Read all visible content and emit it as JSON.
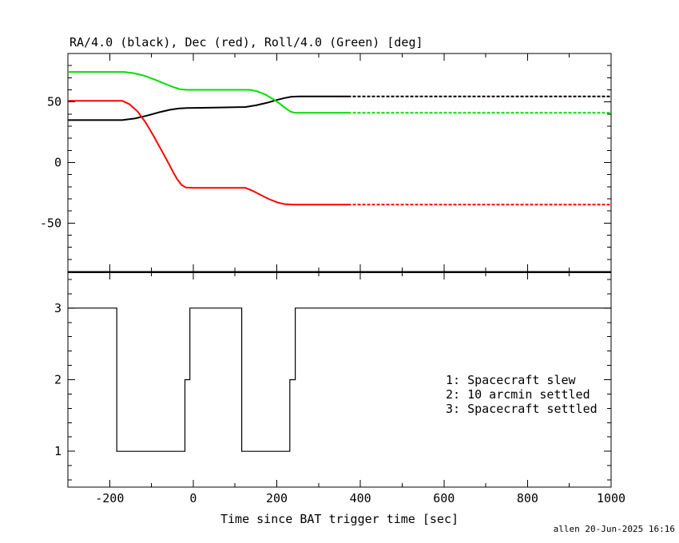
{
  "title": "RA/4.0 (black), Dec (red), Roll/4.0 (Green) [deg]",
  "footer": "allen 20-Jun-2025 16:16",
  "colors": {
    "black": "#000000",
    "red": "#ff0000",
    "green": "#00dd00",
    "frame": "#000000",
    "footer_text": "#000080",
    "background": "#ffffff"
  },
  "x_axis": {
    "label": "Time since BAT trigger time [sec]",
    "min": -300,
    "max": 1000,
    "major_step": 200,
    "minor_step": 100,
    "tick_values": [
      -200,
      0,
      200,
      400,
      600,
      800,
      1000
    ],
    "tick_labels": [
      "-200",
      "0",
      "200",
      "400",
      "600",
      "800",
      "1000"
    ]
  },
  "chart_data": [
    {
      "type": "line",
      "panel": "attitude",
      "title": "RA/4.0 (black), Dec (red), Roll/4.0 (Green) [deg]",
      "xlabel": "Time since BAT trigger time [sec]",
      "ylabel": "",
      "xlim": [
        -300,
        1000
      ],
      "ylim": [
        -90,
        90
      ],
      "grid": false,
      "y_major_step": 50,
      "y_minor_step": 10,
      "ytick_values": [
        50,
        0,
        -50
      ],
      "ytick_labels": [
        "50",
        "0",
        "-50"
      ],
      "series": [
        {
          "name": "RA/4.0",
          "color_key": "black",
          "dash_from": 370,
          "points": [
            [
              -300,
              35
            ],
            [
              -170,
              35
            ],
            [
              -140,
              36.3
            ],
            [
              -110,
              38.8
            ],
            [
              -80,
              41.6
            ],
            [
              -55,
              43.6
            ],
            [
              -35,
              44.6
            ],
            [
              -15,
              45
            ],
            [
              50,
              45.3
            ],
            [
              125,
              45.8
            ],
            [
              150,
              47.2
            ],
            [
              175,
              49.2
            ],
            [
              200,
              51.6
            ],
            [
              218,
              53.2
            ],
            [
              235,
              54.3
            ],
            [
              255,
              54.5
            ],
            [
              370,
              54.5
            ],
            [
              1000,
              54.5
            ]
          ]
        },
        {
          "name": "Dec",
          "color_key": "red",
          "dash_from": 370,
          "points": [
            [
              -300,
              51
            ],
            [
              -170,
              51
            ],
            [
              -152,
              48
            ],
            [
              -133,
              42
            ],
            [
              -114,
              33
            ],
            [
              -95,
              22
            ],
            [
              -76,
              10
            ],
            [
              -60,
              0
            ],
            [
              -48,
              -8
            ],
            [
              -38,
              -14
            ],
            [
              -28,
              -18.5
            ],
            [
              -18,
              -20.6
            ],
            [
              0,
              -21
            ],
            [
              125,
              -21
            ],
            [
              143,
              -23.5
            ],
            [
              162,
              -27
            ],
            [
              182,
              -30.3
            ],
            [
              202,
              -33
            ],
            [
              220,
              -34.5
            ],
            [
              240,
              -34.8
            ],
            [
              370,
              -34.8
            ],
            [
              1000,
              -34.8
            ]
          ]
        },
        {
          "name": "Roll/4.0",
          "color_key": "green",
          "dash_from": 370,
          "points": [
            [
              -300,
              74.8
            ],
            [
              -165,
              74.8
            ],
            [
              -140,
              73.6
            ],
            [
              -115,
              71.4
            ],
            [
              -90,
              68.2
            ],
            [
              -65,
              64.6
            ],
            [
              -45,
              61.9
            ],
            [
              -30,
              60.4
            ],
            [
              -15,
              60
            ],
            [
              135,
              60
            ],
            [
              153,
              58.8
            ],
            [
              172,
              56.2
            ],
            [
              190,
              52.6
            ],
            [
              207,
              48.6
            ],
            [
              222,
              44.6
            ],
            [
              233,
              42
            ],
            [
              243,
              41.1
            ],
            [
              370,
              41
            ],
            [
              1000,
              41
            ]
          ]
        }
      ]
    },
    {
      "type": "line",
      "panel": "settling-status",
      "xlabel": "Time since BAT trigger time [sec]",
      "xlim": [
        -300,
        1000
      ],
      "ylim": [
        0.5,
        3.5
      ],
      "grid": false,
      "y_major_step": 1,
      "y_minor_step": 0.2,
      "ytick_values": [
        3,
        2,
        1
      ],
      "ytick_labels": [
        "3",
        "2",
        "1"
      ],
      "series": [
        {
          "name": "settling-status-step",
          "color_key": "black",
          "points": [
            [
              -300,
              3
            ],
            [
              -183,
              3
            ],
            [
              -183,
              1
            ],
            [
              -20,
              1
            ],
            [
              -20,
              2
            ],
            [
              -8,
              2
            ],
            [
              -8,
              3
            ],
            [
              116,
              3
            ],
            [
              116,
              1
            ],
            [
              231,
              1
            ],
            [
              231,
              2
            ],
            [
              244,
              2
            ],
            [
              244,
              3
            ],
            [
              1000,
              3
            ]
          ]
        }
      ],
      "annotations": [
        "1: Spacecraft slew",
        "2: 10 arcmin settled",
        "3: Spacecraft settled"
      ]
    }
  ],
  "legend": {
    "lines": [
      "1: Spacecraft slew",
      "2: 10 arcmin settled",
      "3: Spacecraft settled"
    ]
  }
}
